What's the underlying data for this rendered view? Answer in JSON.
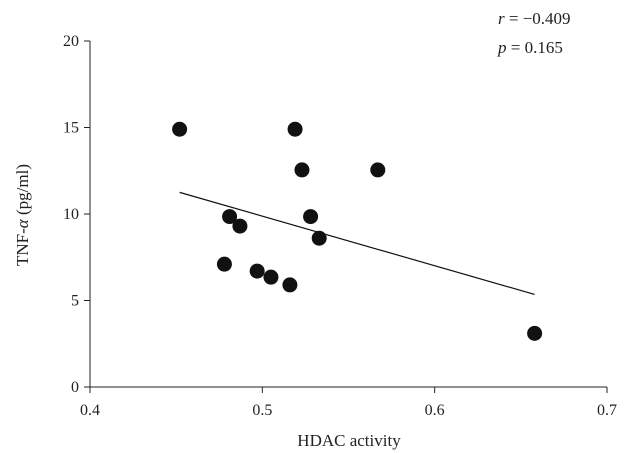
{
  "chart_data": {
    "type": "scatter",
    "xlabel": "HDAC activity",
    "ylabel_prefix": "TNF-",
    "ylabel_symbol": "α",
    "ylabel_suffix": " (pg/ml)",
    "xlim": [
      0.4,
      0.7
    ],
    "ylim": [
      0,
      20
    ],
    "xticks": [
      "0.4",
      "0.5",
      "0.6",
      "0.7"
    ],
    "yticks": [
      "0",
      "5",
      "10",
      "15",
      "20"
    ],
    "grid": false,
    "legend": false,
    "points": [
      {
        "x": 0.452,
        "y": 14.9
      },
      {
        "x": 0.478,
        "y": 7.1
      },
      {
        "x": 0.481,
        "y": 9.85
      },
      {
        "x": 0.487,
        "y": 9.3
      },
      {
        "x": 0.497,
        "y": 6.7
      },
      {
        "x": 0.505,
        "y": 6.35
      },
      {
        "x": 0.516,
        "y": 5.9
      },
      {
        "x": 0.519,
        "y": 14.9
      },
      {
        "x": 0.523,
        "y": 12.55
      },
      {
        "x": 0.528,
        "y": 9.85
      },
      {
        "x": 0.533,
        "y": 8.6
      },
      {
        "x": 0.567,
        "y": 12.55
      },
      {
        "x": 0.658,
        "y": 3.1
      }
    ],
    "trendline": {
      "x": [
        0.452,
        0.658
      ],
      "y": [
        11.25,
        5.35
      ]
    },
    "stats": {
      "r_symbol": "r",
      "r_text": " = −0.409",
      "p_symbol": "p",
      "p_text": " = 0.165"
    }
  },
  "colors": {
    "points": "#111111",
    "axis": "#222222",
    "trendline": "#111111"
  }
}
